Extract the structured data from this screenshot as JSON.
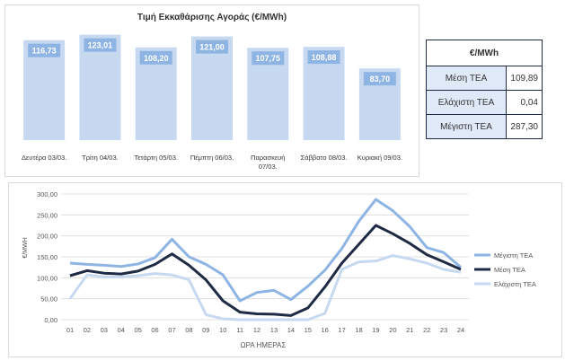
{
  "chart_data": [
    {
      "type": "bar",
      "title": "Τιμή Εκκαθάρισης Αγοράς (€/MWh)",
      "categories": [
        "Δευτέρα 03/03.",
        "Τρίτη 04/03.",
        "Τετάρτη 05/03.",
        "Πέμπτη 06/03.",
        "Παρασκευή 07/03.",
        "Σάββατο 08/03.",
        "Κυριακή 09/03."
      ],
      "value_labels": [
        "116,73",
        "123,01",
        "108,20",
        "121,00",
        "107,75",
        "108,88",
        "83,70"
      ],
      "values": [
        116.73,
        123.01,
        108.2,
        121.0,
        107.75,
        108.88,
        83.7
      ],
      "ylim": [
        0,
        130
      ],
      "colors": {
        "bar": "#c6d9f1",
        "label_bg": "#8eb4e3",
        "label_text": "#ffffff"
      }
    },
    {
      "type": "table",
      "header": "€/MWh",
      "rows": [
        {
          "label": "Μέση ΤΕΑ",
          "value": "109,89"
        },
        {
          "label": "Ελάχιστη ΤΕΑ",
          "value": "0,04"
        },
        {
          "label": "Μέγιστη ΤΕΑ",
          "value": "287,30"
        }
      ]
    },
    {
      "type": "line",
      "xlabel": "ΩΡΑ ΗΜΕΡΑΣ",
      "ylabel": "€/MWH",
      "x": [
        "01",
        "02",
        "03",
        "04",
        "05",
        "06",
        "07",
        "08",
        "09",
        "10",
        "11",
        "12",
        "13",
        "14",
        "15",
        "16",
        "17",
        "18",
        "19",
        "20",
        "21",
        "22",
        "23",
        "24"
      ],
      "ylim": [
        0,
        300
      ],
      "yticks": [
        "0,00",
        "50,00",
        "100,00",
        "150,00",
        "200,00",
        "250,00",
        "300,00"
      ],
      "grid": true,
      "legend": "right",
      "series": [
        {
          "name": "Μέγιστη ΤΕΑ",
          "color": "#8eb4e3",
          "values": [
            135,
            132,
            130,
            127,
            133,
            148,
            192,
            150,
            132,
            107,
            45,
            65,
            70,
            48,
            80,
            118,
            170,
            235,
            287,
            260,
            222,
            172,
            160,
            125
          ]
        },
        {
          "name": "Μέση ΤΕΑ",
          "color": "#1f2a44",
          "values": [
            105,
            117,
            111,
            109,
            116,
            132,
            157,
            130,
            95,
            45,
            18,
            14,
            13,
            10,
            28,
            78,
            135,
            180,
            225,
            205,
            182,
            155,
            138,
            120
          ]
        },
        {
          "name": "Ελάχιστη ΤΕΑ",
          "color": "#c6d9f1",
          "values": [
            50,
            107,
            102,
            102,
            105,
            110,
            107,
            95,
            12,
            2,
            0,
            0,
            0,
            0,
            0,
            15,
            120,
            138,
            140,
            153,
            145,
            135,
            120,
            113
          ]
        }
      ]
    }
  ]
}
